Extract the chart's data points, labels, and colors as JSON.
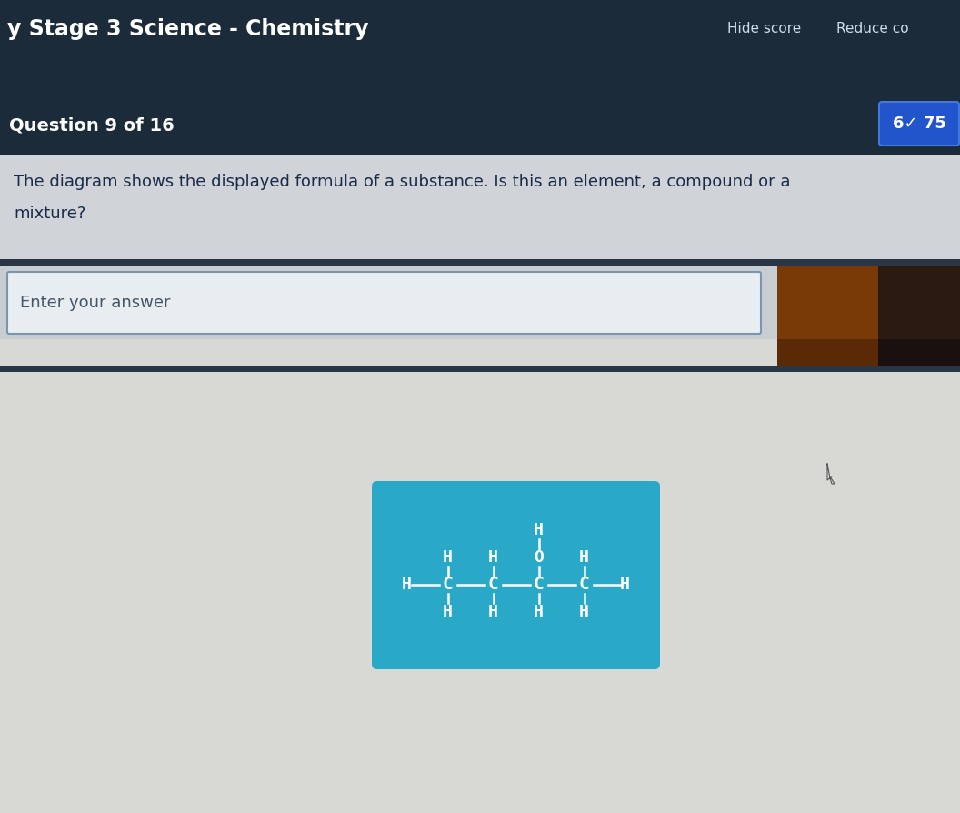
{
  "title": "y Stage 3 Science - Chemistry",
  "header_bg": "#1c2b3a",
  "header_text_color": "#ffffff",
  "hide_score_text": "Hide score",
  "reduce_text": "Reduce co",
  "question_bar_bg": "#1c2535",
  "question_text": "Question 9 of 16",
  "score_box_bg": "#2255cc",
  "score_text": "6✓ 75",
  "question_body_bg": "#d0d4d8",
  "answer_placeholder": "Enter your answer",
  "main_bg": "#d8d8d4",
  "molecule_box_bg": "#29a8c8",
  "text_color_white": "#ffffff",
  "text_color_dark": "#1a2a4a",
  "wood_color_left": "#8b4a12",
  "wood_color_right": "#2a2020",
  "cursor_color": "#333333"
}
